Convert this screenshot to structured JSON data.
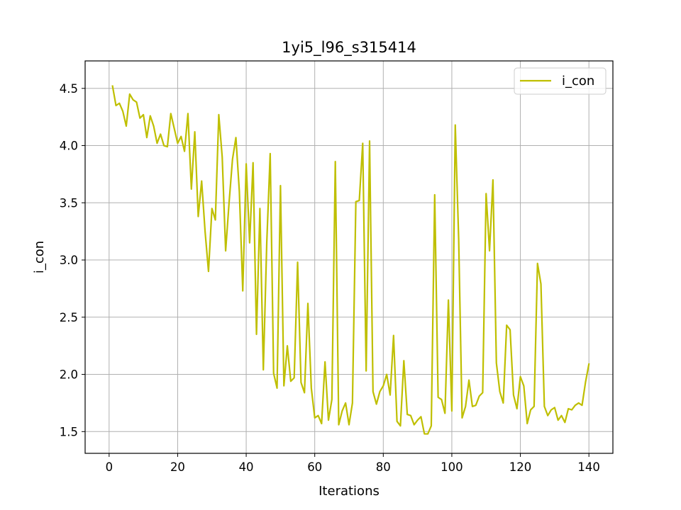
{
  "chart_data": {
    "type": "line",
    "title": "1yi5_l96_s315414",
    "xlabel": "Iterations",
    "ylabel": "i_con",
    "xlim": [
      -7,
      147
    ],
    "ylim": [
      1.31,
      4.74
    ],
    "xticks": [
      0,
      20,
      40,
      60,
      80,
      100,
      120,
      140
    ],
    "yticks": [
      1.5,
      2.0,
      2.5,
      3.0,
      3.5,
      4.0,
      4.5
    ],
    "ytick_labels": [
      "1.5",
      "2.0",
      "2.5",
      "3.0",
      "3.5",
      "4.0",
      "4.5"
    ],
    "grid": true,
    "legend_position": "top-right",
    "series": [
      {
        "name": "i_con",
        "color": "#bfbf00",
        "x": [
          1,
          2,
          3,
          4,
          5,
          6,
          7,
          8,
          9,
          10,
          11,
          12,
          13,
          14,
          15,
          16,
          17,
          18,
          19,
          20,
          21,
          22,
          23,
          24,
          25,
          26,
          27,
          28,
          29,
          30,
          31,
          32,
          33,
          34,
          35,
          36,
          37,
          38,
          39,
          40,
          41,
          42,
          43,
          44,
          45,
          46,
          47,
          48,
          49,
          50,
          51,
          52,
          53,
          54,
          55,
          56,
          57,
          58,
          59,
          60,
          61,
          62,
          63,
          64,
          65,
          66,
          67,
          68,
          69,
          70,
          71,
          72,
          73,
          74,
          75,
          76,
          77,
          78,
          79,
          80,
          81,
          82,
          83,
          84,
          85,
          86,
          87,
          88,
          89,
          90,
          91,
          92,
          93,
          94,
          95,
          96,
          97,
          98,
          99,
          100,
          101,
          102,
          103,
          104,
          105,
          106,
          107,
          108,
          109,
          110,
          111,
          112,
          113,
          114,
          115,
          116,
          117,
          118,
          119,
          120,
          121,
          122,
          123,
          124,
          125,
          126,
          127,
          128,
          129,
          130,
          131,
          132,
          133,
          134,
          135,
          136,
          137,
          138,
          139,
          140
        ],
        "y": [
          4.52,
          4.35,
          4.37,
          4.3,
          4.17,
          4.45,
          4.4,
          4.38,
          4.24,
          4.27,
          4.07,
          4.26,
          4.17,
          4.02,
          4.1,
          4.0,
          3.99,
          4.28,
          4.15,
          4.02,
          4.08,
          3.95,
          4.28,
          3.62,
          4.12,
          3.38,
          3.69,
          3.25,
          2.9,
          3.45,
          3.35,
          4.27,
          3.9,
          3.08,
          3.5,
          3.88,
          4.07,
          3.6,
          2.73,
          3.84,
          3.15,
          3.85,
          2.35,
          3.45,
          2.04,
          3.15,
          3.93,
          2.01,
          1.88,
          3.65,
          1.9,
          2.25,
          1.94,
          1.97,
          2.98,
          1.93,
          1.84,
          2.62,
          1.88,
          1.62,
          1.64,
          1.57,
          2.11,
          1.6,
          1.78,
          3.86,
          1.56,
          1.68,
          1.75,
          1.56,
          1.75,
          3.51,
          3.52,
          4.02,
          2.03,
          4.04,
          1.85,
          1.74,
          1.85,
          1.9,
          2.0,
          1.82,
          2.34,
          1.59,
          1.55,
          2.12,
          1.65,
          1.64,
          1.56,
          1.6,
          1.63,
          1.48,
          1.48,
          1.55,
          3.57,
          1.8,
          1.78,
          1.66,
          2.65,
          1.68,
          4.18,
          3.18,
          1.62,
          1.72,
          1.95,
          1.72,
          1.73,
          1.81,
          1.84,
          3.58,
          3.08,
          3.7,
          2.1,
          1.85,
          1.75,
          2.43,
          2.39,
          1.82,
          1.7,
          1.98,
          1.9,
          1.57,
          1.69,
          1.72,
          2.97,
          2.79,
          1.72,
          1.64,
          1.69,
          1.71,
          1.6,
          1.64,
          1.58,
          1.7,
          1.69,
          1.73,
          1.75,
          1.73,
          1.93,
          2.09
        ]
      }
    ]
  }
}
